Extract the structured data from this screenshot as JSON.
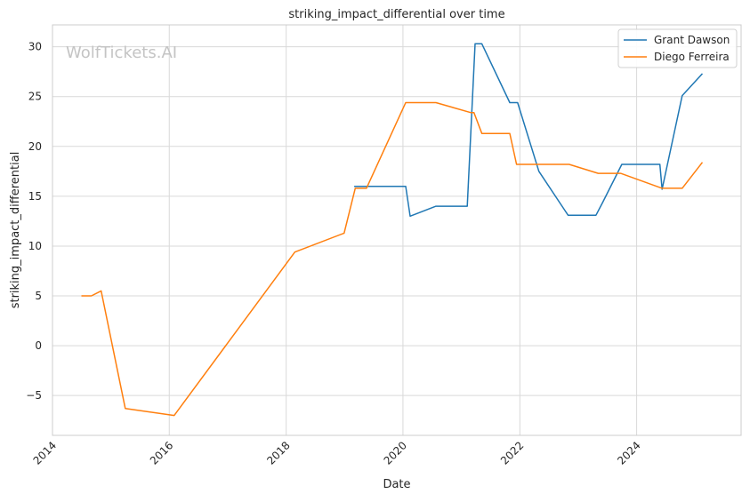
{
  "chart_data": {
    "type": "line",
    "title": "striking_impact_differential over time",
    "xlabel": "Date",
    "ylabel": "striking_impact_differential",
    "watermark": "WolfTickets.AI",
    "grid": true,
    "legend_position": "top-right",
    "xlim": [
      "2014-01-01",
      "2025-10-15"
    ],
    "ylim": [
      -9,
      32.2
    ],
    "x_ticks": [
      "2014",
      "2016",
      "2018",
      "2020",
      "2022",
      "2024"
    ],
    "y_ticks": [
      -5,
      0,
      5,
      10,
      15,
      20,
      25,
      30
    ],
    "y_tick_labels": [
      "−5",
      "0",
      "5",
      "10",
      "15",
      "20",
      "25",
      "30"
    ],
    "series": [
      {
        "name": "Grant Dawson",
        "color": "#1f77b4",
        "points": [
          [
            "2019-03-02",
            16.0
          ],
          [
            "2019-06-01",
            16.0
          ],
          [
            "2020-01-18",
            16.0
          ],
          [
            "2020-02-15",
            13.0
          ],
          [
            "2020-07-25",
            14.0
          ],
          [
            "2021-02-06",
            14.0
          ],
          [
            "2021-03-27",
            30.3
          ],
          [
            "2021-05-08",
            30.3
          ],
          [
            "2021-10-30",
            24.4
          ],
          [
            "2021-12-18",
            24.4
          ],
          [
            "2022-04-30",
            17.5
          ],
          [
            "2022-10-29",
            13.1
          ],
          [
            "2023-04-22",
            13.1
          ],
          [
            "2023-06-03",
            14.4
          ],
          [
            "2023-09-30",
            18.2
          ],
          [
            "2024-05-25",
            18.2
          ],
          [
            "2024-06-08",
            15.7
          ],
          [
            "2024-10-12",
            25.1
          ],
          [
            "2025-02-15",
            27.3
          ]
        ]
      },
      {
        "name": "Diego Ferreira",
        "color": "#ff7f0e",
        "points": [
          [
            "2014-07-01",
            5.0
          ],
          [
            "2014-09-01",
            5.0
          ],
          [
            "2014-11-01",
            5.5
          ],
          [
            "2015-04-01",
            -6.3
          ],
          [
            "2016-02-01",
            -7.0
          ],
          [
            "2018-02-24",
            9.4
          ],
          [
            "2018-12-29",
            11.3
          ],
          [
            "2019-03-09",
            15.8
          ],
          [
            "2019-05-18",
            15.8
          ],
          [
            "2020-01-18",
            24.4
          ],
          [
            "2020-07-25",
            24.4
          ],
          [
            "2021-02-27",
            23.4
          ],
          [
            "2021-03-20",
            23.4
          ],
          [
            "2021-05-08",
            21.3
          ],
          [
            "2021-10-30",
            21.3
          ],
          [
            "2021-12-11",
            18.2
          ],
          [
            "2022-11-05",
            18.2
          ],
          [
            "2023-05-06",
            17.3
          ],
          [
            "2023-09-23",
            17.3
          ],
          [
            "2024-06-08",
            15.8
          ],
          [
            "2024-10-12",
            15.8
          ],
          [
            "2025-02-15",
            18.4
          ]
        ]
      }
    ]
  }
}
